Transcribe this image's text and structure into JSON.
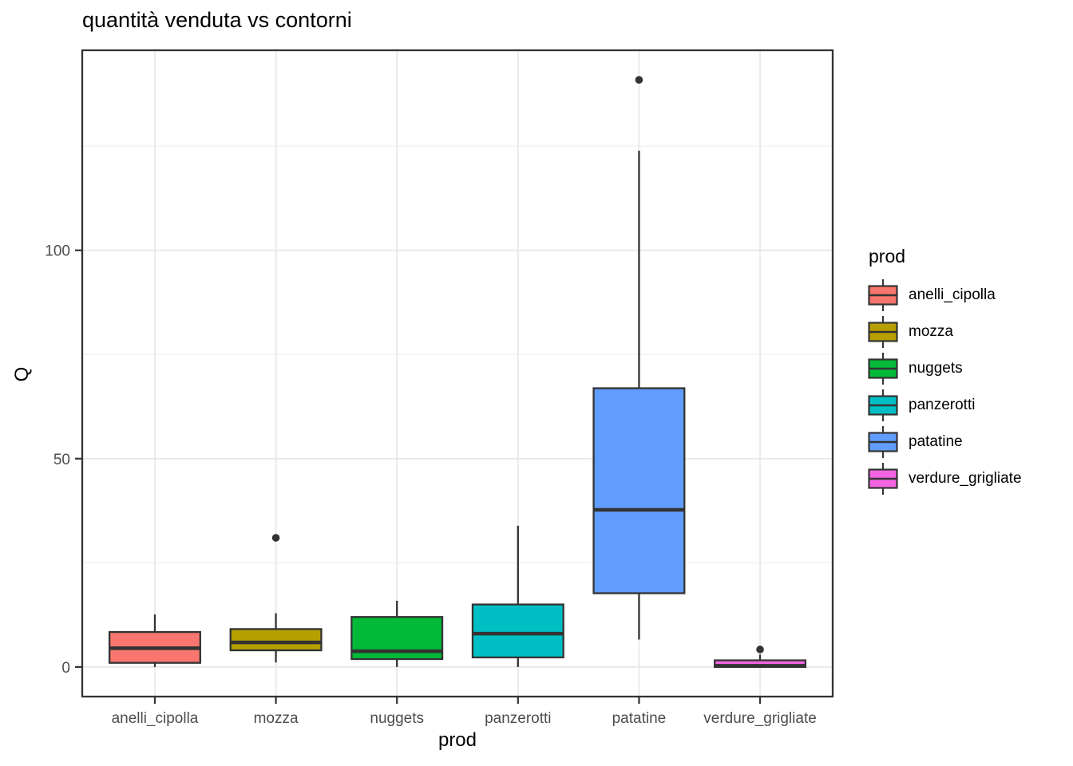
{
  "title": "quantità venduta vs contorni",
  "chart_data": {
    "type": "boxplot",
    "title": "quantità venduta vs contorni",
    "xlabel": "prod",
    "ylabel": "Q",
    "categories": [
      "anelli_cipolla",
      "mozza",
      "nuggets",
      "panzerotti",
      "patatine",
      "verdure_grigliate"
    ],
    "y_ticks": [
      0,
      50,
      100
    ],
    "y_minor_ticks": [
      25,
      75,
      125
    ],
    "ylim": [
      -7.1,
      148
    ],
    "grid": true,
    "series": [
      {
        "name": "anelli_cipolla",
        "color": "#F8766D",
        "min": 0,
        "q1": 1.0,
        "median": 4.5,
        "q3": 8.4,
        "max": 12.6,
        "outliers": []
      },
      {
        "name": "mozza",
        "color": "#B79F00",
        "min": 1.1,
        "q1": 4.0,
        "median": 5.9,
        "q3": 9.1,
        "max": 12.9,
        "outliers": [
          31
        ]
      },
      {
        "name": "nuggets",
        "color": "#00BA38",
        "min": 0,
        "q1": 1.9,
        "median": 3.8,
        "q3": 12.0,
        "max": 15.9,
        "outliers": []
      },
      {
        "name": "panzerotti",
        "color": "#00BFC4",
        "min": 0,
        "q1": 2.3,
        "median": 8.0,
        "q3": 15.0,
        "max": 33.9,
        "outliers": []
      },
      {
        "name": "patatine",
        "color": "#619CFF",
        "min": 6.6,
        "q1": 17.7,
        "median": 37.7,
        "q3": 66.9,
        "max": 123.9,
        "outliers": [
          140.9
        ]
      },
      {
        "name": "verdure_grigliate",
        "color": "#F564E3",
        "min": 0,
        "q1": 0,
        "median": 0.3,
        "q3": 1.6,
        "max": 3.0,
        "outliers": [
          4.2
        ]
      }
    ],
    "legend": {
      "title": "prod",
      "position": "right"
    },
    "style": {
      "panel_border": "#333333",
      "grid_major": "#e8e8e8",
      "grid_minor": "#f2f2f2",
      "tick_color": "#333333",
      "tick_text": "#4d4d4d",
      "box_stroke": "#333333",
      "outlier_color": "#333333"
    }
  }
}
